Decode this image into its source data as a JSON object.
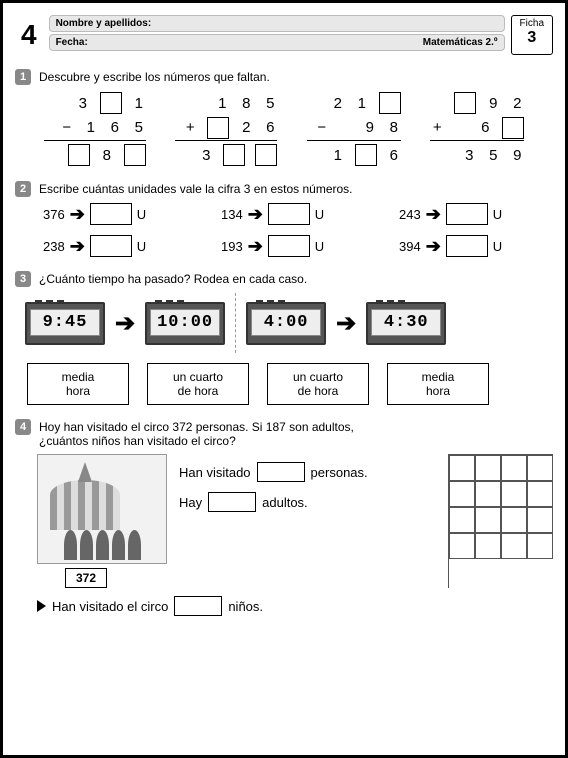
{
  "header": {
    "num": "4",
    "name_label": "Nombre y apellidos:",
    "date_label": "Fecha:",
    "subject": "Matemáticas 2.º",
    "ficha_label": "Ficha",
    "ficha_num": "3"
  },
  "q1": {
    "badge": "1",
    "text": "Descubre y escribe los números que faltan.",
    "problems": [
      {
        "r1": [
          "3",
          "",
          "1"
        ],
        "r1_box": [
          false,
          true,
          false
        ],
        "sign": "−",
        "r2": [
          "1",
          "6",
          "5"
        ],
        "r2_box": [
          false,
          false,
          false
        ],
        "r3": [
          "",
          "8",
          ""
        ],
        "r3_box": [
          true,
          false,
          true
        ]
      },
      {
        "r1": [
          "1",
          "8",
          "5"
        ],
        "r1_box": [
          false,
          false,
          false
        ],
        "sign": "+",
        "r2": [
          "",
          "2",
          "6"
        ],
        "r2_box": [
          true,
          false,
          false
        ],
        "r3": [
          "3",
          "",
          ""
        ],
        "r3_box": [
          false,
          true,
          true
        ]
      },
      {
        "r1": [
          "2",
          "1",
          ""
        ],
        "r1_box": [
          false,
          false,
          true
        ],
        "sign": "−",
        "r2": [
          "",
          "9",
          "8"
        ],
        "r2_box": [
          false,
          false,
          false
        ],
        "r3": [
          "1",
          "",
          "6"
        ],
        "r3_box": [
          false,
          true,
          false
        ]
      },
      {
        "r1": [
          "",
          "9",
          "2"
        ],
        "r1_box": [
          true,
          false,
          false
        ],
        "sign": "+",
        "r2": [
          "",
          "6",
          ""
        ],
        "r2_box": [
          false,
          false,
          true
        ],
        "r3": [
          "3",
          "5",
          "9"
        ],
        "r3_box": [
          false,
          false,
          false
        ]
      }
    ]
  },
  "q2": {
    "badge": "2",
    "text": "Escribe cuántas unidades vale la cifra 3 en estos números.",
    "unit": "U",
    "items": [
      "376",
      "134",
      "243",
      "238",
      "193",
      "394"
    ]
  },
  "q3": {
    "badge": "3",
    "text": "¿Cuánto tiempo ha pasado? Rodea en cada caso.",
    "clocks": [
      "9:45",
      "10:00",
      "4:00",
      "4:30"
    ],
    "opts": [
      "media\nhora",
      "un cuarto\nde hora",
      "un cuarto\nde hora",
      "media\nhora"
    ]
  },
  "q4": {
    "badge": "4",
    "text1": "Hoy han visitado el circo 372 personas. Si 187 son adultos,",
    "text2": "¿cuántos niños han visitado el circo?",
    "l1a": "Han visitado",
    "l1b": "personas.",
    "l2a": "Hay",
    "l2b": "adultos.",
    "nbox": "372",
    "ansa": "Han visitado el circo",
    "ansb": "niños."
  }
}
